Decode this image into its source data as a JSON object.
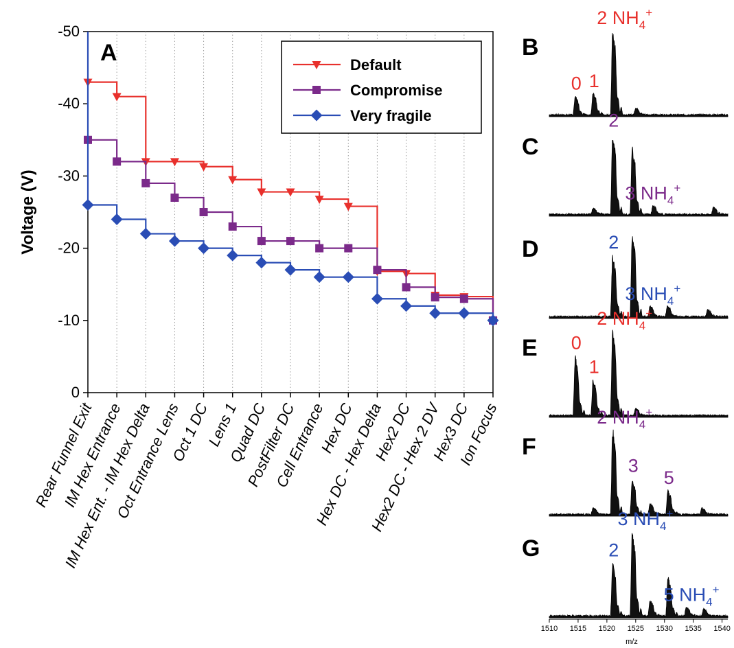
{
  "chart_data": [
    {
      "id": "A",
      "type": "line",
      "panel_label": "A",
      "ylabel": "Voltage (V)",
      "ylim": [
        0,
        -50
      ],
      "y_ticks": [
        -50,
        -40,
        -30,
        -20,
        -10,
        0
      ],
      "y_tick_labels": [
        "-50",
        "-40",
        "-30",
        "-20",
        "-10",
        "0"
      ],
      "grid": "vertical dotted",
      "legend_position": "top-right",
      "categories": [
        "Rear Funnel Exit",
        "IM Hex Entrance",
        "IM Hex Ent. - IM Hex Delta",
        "Oct Entrance Lens",
        "Oct 1 DC",
        "Lens 1",
        "Quad DC",
        "PostFilter DC",
        "Cell Entrance",
        "Hex DC",
        "Hex DC - Hex Delta",
        "Hex2 DC",
        "Hex2 DC - Hex 2 DV",
        "Hex3 DC",
        "Ion Focus"
      ],
      "series": [
        {
          "name": "Default",
          "color": "#e8302c",
          "marker": "triangle-down",
          "values": [
            -43,
            -41,
            -32,
            -32,
            -31.3,
            -29.5,
            -27.8,
            -27.8,
            -26.8,
            -25.8,
            -16.8,
            -16.5,
            -13.5,
            -13.3,
            -10
          ]
        },
        {
          "name": "Compromise",
          "color": "#7b2a8a",
          "marker": "square",
          "values": [
            -35,
            -32,
            -29,
            -27,
            -25,
            -23,
            -21,
            -21,
            -20,
            -20,
            -17,
            -14.6,
            -13.2,
            -13,
            -10
          ]
        },
        {
          "name": "Very fragile",
          "color": "#2a4db5",
          "marker": "diamond",
          "values": [
            -26,
            -24,
            -22,
            -21,
            -20,
            -19,
            -18,
            -17,
            -16,
            -16,
            -13,
            -12,
            -11,
            -11,
            -10
          ]
        }
      ]
    },
    {
      "id": "spectra",
      "type": "line",
      "xlabel": "m/z",
      "xlim": [
        1510,
        1541
      ],
      "x_ticks": [
        1510,
        1515,
        1520,
        1525,
        1530,
        1535,
        1540
      ],
      "x_tick_labels": [
        "1510",
        "1515",
        "1520",
        "1525",
        "1530",
        "1535",
        "1540"
      ],
      "panels": [
        {
          "label": "B",
          "peaks": [
            {
              "mz": 1514.5,
              "h": 0.22
            },
            {
              "mz": 1517.6,
              "h": 0.25
            },
            {
              "mz": 1521.0,
              "h": 1.0
            },
            {
              "mz": 1525.0,
              "h": 0.08
            }
          ],
          "annotations": [
            {
              "text": "0",
              "color": "#e8302c",
              "mz": 1514.5
            },
            {
              "text": "1",
              "color": "#e8302c",
              "mz": 1517.6
            },
            {
              "text": "2 NH",
              "sub": "4",
              "sup": "+",
              "color": "#e8302c",
              "mz": 1521.6
            }
          ]
        },
        {
          "label": "C",
          "peaks": [
            {
              "mz": 1517.6,
              "h": 0.07
            },
            {
              "mz": 1521.0,
              "h": 0.95
            },
            {
              "mz": 1524.4,
              "h": 0.8
            },
            {
              "mz": 1528.0,
              "h": 0.1
            },
            {
              "mz": 1538.5,
              "h": 0.08
            }
          ],
          "annotations": [
            {
              "text": "2",
              "color": "#7b2a8a",
              "mz": 1521.0
            },
            {
              "text": "3 NH",
              "sub": "4",
              "sup": "+",
              "color": "#7b2a8a",
              "mz": 1526.5
            }
          ]
        },
        {
          "label": "D",
          "peaks": [
            {
              "mz": 1521.0,
              "h": 0.72
            },
            {
              "mz": 1524.4,
              "h": 1.0
            },
            {
              "mz": 1527.5,
              "h": 0.12
            },
            {
              "mz": 1530.5,
              "h": 0.12
            },
            {
              "mz": 1537.5,
              "h": 0.08
            }
          ],
          "annotations": [
            {
              "text": "2",
              "color": "#2a4db5",
              "mz": 1521.0
            },
            {
              "text": "3 NH",
              "sub": "4",
              "sup": "+",
              "color": "#2a4db5",
              "mz": 1526.5
            }
          ]
        },
        {
          "label": "E",
          "peaks": [
            {
              "mz": 1514.5,
              "h": 0.7
            },
            {
              "mz": 1517.6,
              "h": 0.42
            },
            {
              "mz": 1521.0,
              "h": 1.0
            },
            {
              "mz": 1525.0,
              "h": 0.08
            }
          ],
          "annotations": [
            {
              "text": "0",
              "color": "#e8302c",
              "mz": 1514.5
            },
            {
              "text": "1",
              "color": "#e8302c",
              "mz": 1517.6
            },
            {
              "text": "2 NH",
              "sub": "4",
              "sup": "+",
              "color": "#e8302c",
              "mz": 1521.6
            }
          ]
        },
        {
          "label": "F",
          "peaks": [
            {
              "mz": 1517.6,
              "h": 0.07
            },
            {
              "mz": 1521.0,
              "h": 1.0
            },
            {
              "mz": 1524.4,
              "h": 0.42
            },
            {
              "mz": 1527.5,
              "h": 0.12
            },
            {
              "mz": 1530.6,
              "h": 0.28
            },
            {
              "mz": 1536.5,
              "h": 0.07
            }
          ],
          "annotations": [
            {
              "text": "2 NH",
              "sub": "4",
              "sup": "+",
              "color": "#7b2a8a",
              "mz": 1521.6
            },
            {
              "text": "3",
              "color": "#7b2a8a",
              "mz": 1524.4
            },
            {
              "text": "5",
              "color": "#7b2a8a",
              "mz": 1530.6
            }
          ]
        },
        {
          "label": "G",
          "peaks": [
            {
              "mz": 1521.0,
              "h": 0.62
            },
            {
              "mz": 1524.4,
              "h": 1.0
            },
            {
              "mz": 1527.5,
              "h": 0.18
            },
            {
              "mz": 1530.6,
              "h": 0.46
            },
            {
              "mz": 1533.8,
              "h": 0.1
            },
            {
              "mz": 1536.8,
              "h": 0.08
            }
          ],
          "annotations": [
            {
              "text": "2",
              "color": "#2a4db5",
              "mz": 1521.0
            },
            {
              "text": "3 NH",
              "sub": "4",
              "sup": "+",
              "color": "#2a4db5",
              "mz": 1525.2
            },
            {
              "text": "5 NH",
              "sub": "4",
              "sup": "+",
              "color": "#2a4db5",
              "mz": 1533.2
            }
          ]
        }
      ]
    }
  ]
}
